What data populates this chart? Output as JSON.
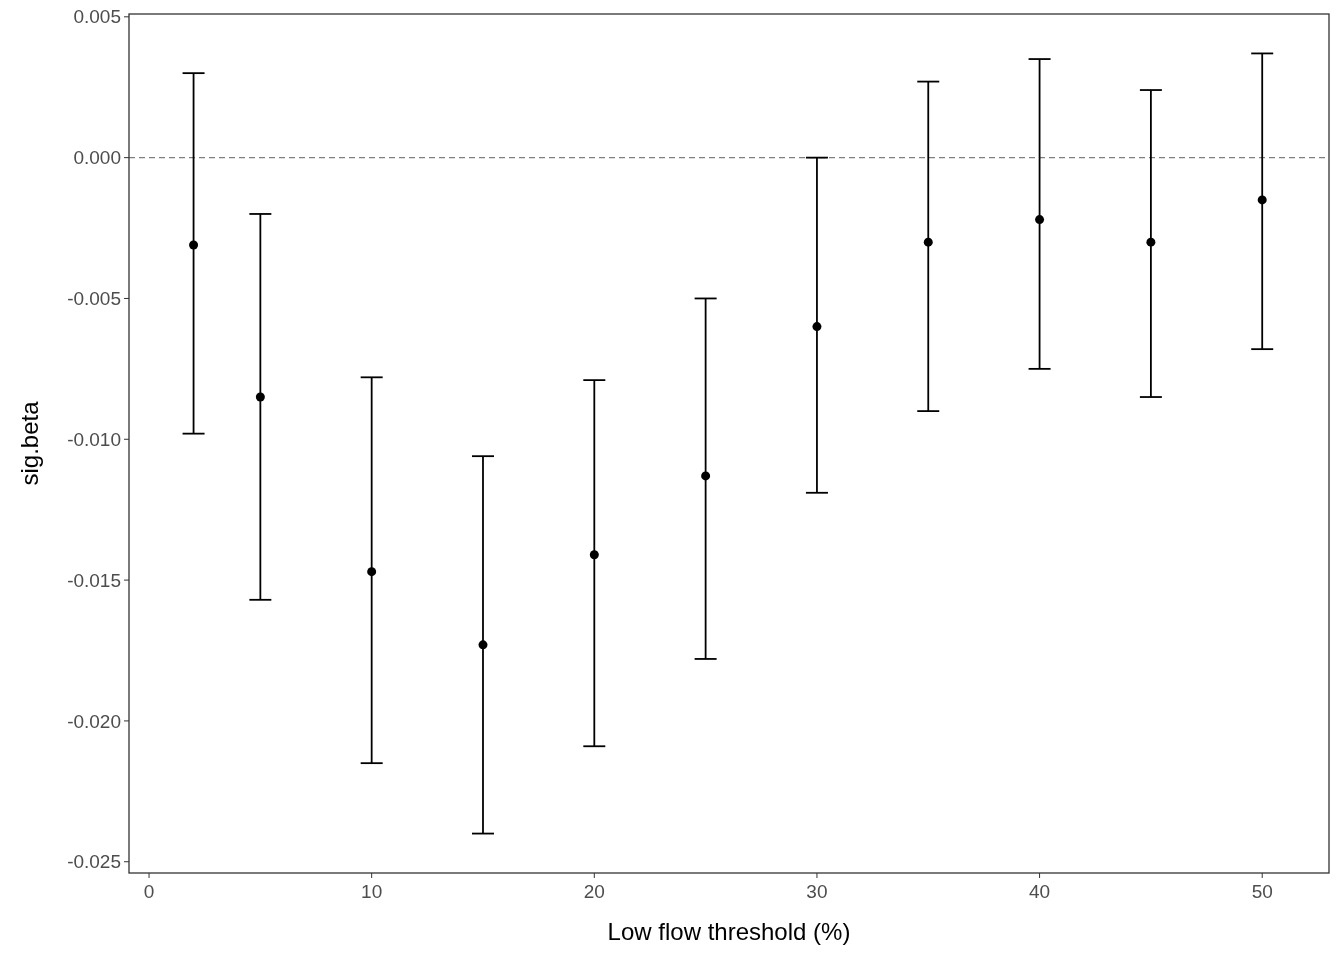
{
  "chart_data": {
    "type": "scatter",
    "xlabel": "Low flow threshold (%)",
    "ylabel": "sig.beta",
    "x": [
      2,
      5,
      10,
      15,
      20,
      25,
      30,
      35,
      40,
      45,
      50
    ],
    "values": [
      -0.0031,
      -0.0085,
      -0.0147,
      -0.0173,
      -0.0141,
      -0.0113,
      -0.006,
      -0.003,
      -0.0022,
      -0.003,
      -0.0015
    ],
    "errors": [
      [
        -0.0098,
        0.003
      ],
      [
        -0.0157,
        -0.002
      ],
      [
        -0.0215,
        -0.0078
      ],
      [
        -0.024,
        -0.0106
      ],
      [
        -0.0209,
        -0.0079
      ],
      [
        -0.0178,
        -0.005
      ],
      [
        -0.0119,
        0.0
      ],
      [
        -0.009,
        0.0027
      ],
      [
        -0.0075,
        0.0035
      ],
      [
        -0.0085,
        0.0024
      ],
      [
        -0.0068,
        0.0037
      ]
    ],
    "color": "#000000",
    "marker": "circle",
    "xlim": [
      -0.9,
      53
    ],
    "xticks": [
      0,
      10,
      20,
      30,
      40,
      50
    ],
    "ylim": [
      -0.0254,
      0.0051
    ],
    "yticks": [
      {
        "value": -0.025,
        "label": "-0.025"
      },
      {
        "value": -0.02,
        "label": "-0.020"
      },
      {
        "value": -0.015,
        "label": "-0.015"
      },
      {
        "value": -0.01,
        "label": "-0.010"
      },
      {
        "value": -0.005,
        "label": "-0.005"
      },
      {
        "value": 0,
        "label": "0.000"
      },
      {
        "value": 0.005,
        "label": "0.005"
      }
    ],
    "ref_lines": [
      {
        "axis": "y",
        "value": 0,
        "color": "#808080",
        "line_style": "dashed"
      }
    ],
    "grid": false
  }
}
